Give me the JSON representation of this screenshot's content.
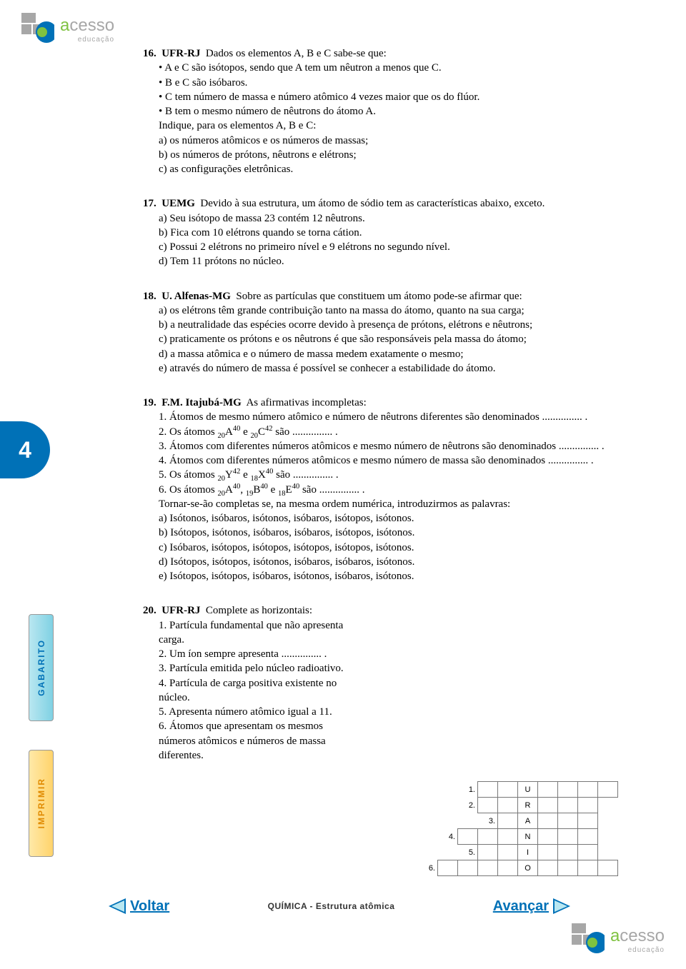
{
  "logo": {
    "word_pre": "a",
    "word_rest": "cesso",
    "subtitle": "educação"
  },
  "page_number": "4",
  "tabs": {
    "gabarito": "GABARITO",
    "imprimir": "IMPRIMIR"
  },
  "footer": {
    "voltar": "Voltar",
    "center": "QUÍMICA - Estrutura atômica",
    "avancar": "Avançar"
  },
  "colors": {
    "brand_blue": "#0071b7",
    "brand_green": "#7fc241",
    "tab_cyan": "#7fd1e3",
    "tab_yellow": "#ffd36b"
  },
  "q16": {
    "num": "16.",
    "src": "UFR-RJ",
    "intro": "Dados os elementos A, B e C sabe-se que:",
    "bullets": [
      "A e C são isótopos, sendo que A tem um nêutron a menos que C.",
      "B e C são isóbaros.",
      "C tem número de massa e número atômico 4 vezes maior que os do flúor.",
      "B tem o mesmo número de nêutrons do átomo A."
    ],
    "indique": "Indique, para os elementos A, B e C:",
    "opts": [
      "a) os números atômicos e os números de massas;",
      "b) os números de prótons, nêutrons e elétrons;",
      "c) as configurações eletrônicas."
    ]
  },
  "q17": {
    "num": "17.",
    "src": "UEMG",
    "intro": "Devido à sua estrutura, um átomo de sódio tem as características abaixo, exceto.",
    "opts": [
      "a) Seu isótopo de massa 23 contém 12 nêutrons.",
      "b) Fica com 10 elétrons quando se torna cátion.",
      "c) Possui 2 elétrons no primeiro nível e 9 elétrons no segundo nível.",
      "d) Tem 11 prótons no núcleo."
    ]
  },
  "q18": {
    "num": "18.",
    "src": "U. Alfenas-MG",
    "intro": "Sobre as partículas que constituem um átomo pode-se afirmar que:",
    "opts": [
      "a) os elétrons têm grande contribuição tanto na massa do átomo, quanto na sua carga;",
      "b) a neutralidade das espécies ocorre devido à presença de prótons, elétrons e nêutrons;",
      "c) praticamente os prótons e os nêutrons é que são responsáveis pela massa do átomo;",
      "d) a massa atômica e o número de massa medem exatamente o mesmo;",
      "e) através do número de massa é possível se conhecer a estabilidade do átomo."
    ]
  },
  "q19": {
    "num": "19.",
    "src": "F.M. Itajubá-MG",
    "intro": "As afirmativas incompletas:",
    "items_html": [
      "1. Átomos de mesmo número atômico e número de nêutrons diferentes são denominados ............... .",
      "2. Os átomos <sub>20</sub>A<sup>40</sup>  e  <sub>20</sub>C<sup>42</sup> são ............... .",
      "3. Átomos com diferentes números atômicos e mesmo número de nêutrons são denominados ............... .",
      "4. Átomos com diferentes números atômicos e mesmo número de massa são denominados ............... .",
      "5. Os átomos <sub>20</sub>Y<sup>42</sup>  e  <sub>18</sub>X<sup>40</sup> são ............... .",
      "6. Os átomos <sub>20</sub>A<sup>40</sup>, <sub>19</sub>B<sup>40</sup>  e  <sub>18</sub>E<sup>40</sup> são ............... ."
    ],
    "lead": "Tornar-se-ão completas se, na mesma ordem numérica, introduzirmos as palavras:",
    "opts": [
      "a) Isótonos, isóbaros, isótonos, isóbaros, isótopos, isótonos.",
      "b) Isótopos, isótonos, isóbaros, isóbaros, isótopos, isótonos.",
      "c) Isóbaros, isótopos, isótopos, isótopos, isótopos, isótonos.",
      "d) Isótopos, isótopos, isótonos, isóbaros, isóbaros, isótonos.",
      "e) Isótopos, isótopos, isóbaros, isótonos, isóbaros, isótonos."
    ]
  },
  "q20": {
    "num": "20.",
    "src": "UFR-RJ",
    "intro": "Complete as horizontais:",
    "clues": [
      "1. Partícula fundamental que não apresenta carga.",
      "2. Um íon sempre apresenta ............... .",
      "3. Partícula emitida pelo núcleo radioativo.",
      "4. Partícula de carga positiva existente no núcleo.",
      "5. Apresenta número atômico igual a 11.",
      "6. Átomos que apresentam os mesmos números atômicos e números de massa diferentes."
    ]
  },
  "crossword": {
    "letters": [
      "U",
      "R",
      "A",
      "N",
      "I",
      "O"
    ],
    "rows": [
      {
        "label": "1.",
        "start": 3,
        "len": 7,
        "letter_col": 5
      },
      {
        "label": "2.",
        "start": 3,
        "len": 6,
        "letter_col": 5
      },
      {
        "label": "3.",
        "start": 4,
        "len": 5,
        "letter_col": 5
      },
      {
        "label": "4.",
        "start": 2,
        "len": 7,
        "letter_col": 5
      },
      {
        "label": "5.",
        "start": 3,
        "len": 6,
        "letter_col": 5
      },
      {
        "label": "6.",
        "start": 1,
        "len": 9,
        "letter_col": 5
      }
    ]
  }
}
